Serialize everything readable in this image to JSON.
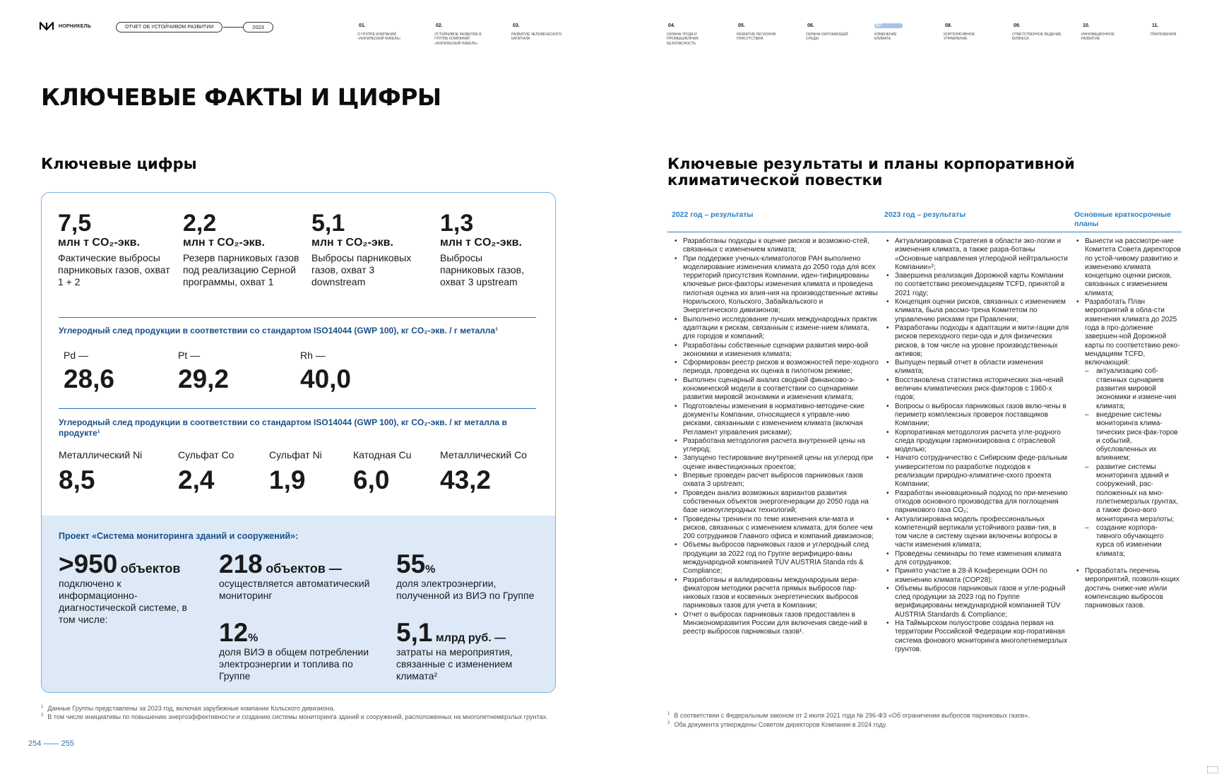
{
  "header": {
    "logo_text": "НОРНИКЕЛЬ",
    "report_label": "ОТЧЕТ ОБ УСТОЙЧИВОМ РАЗВИТИИ",
    "year": "2023",
    "nav": [
      {
        "num": "01.",
        "label": "О ГРУППЕ КОМПАНИЙ «НОРИЛЬСКИЙ НИКЕЛЬ»"
      },
      {
        "num": "02.",
        "label": "УСТОЙЧИВОЕ РАЗВИТИЕ В ГРУППЕ КОМПАНИЙ «НОРИЛЬСКИЙ НИКЕЛЬ»"
      },
      {
        "num": "03.",
        "label": "РАЗВИТИЕ ЧЕЛОВЕЧЕСКОГО КАПИТАЛА"
      },
      {
        "num": "04.",
        "label": "ОХРАНА ТРУДА И ПРОМЫШЛЕННАЯ БЕЗОПАСНОСТЬ"
      },
      {
        "num": "05.",
        "label": "РАЗВИТИЕ РЕГИОНОВ ПРИСУТСТВИЯ"
      },
      {
        "num": "06.",
        "label": "ОХРАНА ОКРУЖАЮЩЕЙ СРЕДЫ"
      },
      {
        "num": "07.",
        "label": "ИЗМЕНЕНИЕ КЛИМАТА",
        "active": true
      },
      {
        "num": "08.",
        "label": "КОРПОРАТИВНОЕ УПРАВЛЕНИЕ"
      },
      {
        "num": "09.",
        "label": "ОТВЕТСТВЕННОЕ ВЕДЕНИЕ БИЗНЕСА"
      },
      {
        "num": "10.",
        "label": "ИННОВАЦИОННОЕ РАЗВИТИЕ"
      },
      {
        "num": "11.",
        "label": "ПРИЛОЖЕНИЯ"
      }
    ]
  },
  "main_title": "КЛЮЧЕВЫЕ ФАКТЫ И ЦИФРЫ",
  "left": {
    "title": "Ключевые цифры",
    "key_figures": [
      {
        "value": "7,5",
        "unit": "млн т CO₂-экв.",
        "desc": "Фактические выбросы парниковых газов, охват 1 + 2"
      },
      {
        "value": "2,2",
        "unit": "млн т CO₂-экв.",
        "desc": "Резерв парниковых газов под реализацию Серной программы, охват 1"
      },
      {
        "value": "5,1",
        "unit": "млн т CO₂-экв.",
        "desc": "Выбросы парниковых газов, охват 3 downstream"
      },
      {
        "value": "1,3",
        "unit": "млн т CO₂-экв.",
        "desc": "Выбросы парниковых газов, охват 3 upstream"
      }
    ],
    "footprint_g": {
      "heading": "Углеродный след продукции в соответствии со стандартом ISO14044 (GWP 100), кг CO₂-экв. / г металла¹",
      "items": [
        {
          "name": "Pd —",
          "value": "28,6"
        },
        {
          "name": "Pt —",
          "value": "29,2"
        },
        {
          "name": "Rh —",
          "value": "40,0"
        }
      ]
    },
    "footprint_kg": {
      "heading": "Углеродный след продукции в соответствии со стандартом ISO14044 (GWP 100), кг CO₂-экв. / кг металла в продукте¹",
      "items": [
        {
          "name": "Металлический Ni",
          "value": "8,5"
        },
        {
          "name": "Сульфат Co",
          "value": "2,4"
        },
        {
          "name": "Сульфат Ni",
          "value": "1,9"
        },
        {
          "name": "Катодная Cu",
          "value": "6,0"
        },
        {
          "name": "Металлический Co",
          "value": "43,2"
        }
      ]
    },
    "monitoring": {
      "title": "Проект «Система мониторинга зданий и сооружений»:",
      "m1_value": ">950",
      "m1_unit": "объектов",
      "m1_desc": "подключено к информационно-диагностической системе, в том числе:",
      "m2_value": "218",
      "m2_unit": "объектов —",
      "m2_desc": "осуществляется автоматический мониторинг",
      "m3_value": "55",
      "m3_unit": "%",
      "m3_desc": "доля электроэнергии, полученной из ВИЭ по Группе",
      "m4_value": "12",
      "m4_unit": "%",
      "m4_desc": "доля ВИЭ в общем потреблении электроэнергии и топлива по Группе",
      "m5_value": "5,1",
      "m5_unit": "млрд руб. —",
      "m5_desc": "затраты на мероприятия, связанные с изменением климата²"
    },
    "footnotes": [
      {
        "num": "1",
        "text": "Данные Группы представлены за 2023 год, включая зарубежные компании Кольского дивизиона."
      },
      {
        "num": "2",
        "text": "В том числе инициативы по повышению энергоэффективности и созданию системы мониторинга зданий и сооружений, расположенных на многолетнемерзлых грунтах."
      }
    ],
    "pages": "254 —— 255"
  },
  "right": {
    "title": "Ключевые результаты и планы корпоративной климатической повестки",
    "col1_head": "2022 год – результаты",
    "col2_head": "2023 год – результаты",
    "col3_head": "Основные краткосрочные планы",
    "col1": [
      "Разработаны подходы к оценке рисков и возможно-стей, связанных с изменением климата;",
      "При поддержке ученых-климатологов РАН выполнено моделирование изменения климата до 2050 года для всех территорий присутствия Компании, иден-тифицированы ключевые риск-факторы изменения климата и проведена пилотная оценка их влия-ния на производственные активы Норильского, Кольского, Забайкальского и Энергетического дивизионов;",
      "Выполнено исследование лучших международных практик адаптации к рискам, связанным с измене-нием климата, для городов и компаний;",
      "Разработаны собственные сценарии развития миро-вой экономики и изменения климата;",
      "Сформирован реестр рисков и возможностей пере-ходного периода, проведена их оценка в пилотном режиме;",
      "Выполнен сценарный анализ сводной финансово-э-кономической модели в соответствии со сценариями развития мировой экономики и изменения климата;",
      "Подготовлены изменения в нормативно-методиче-ские документы Компании, относящиеся к управле-нию рисками, связанными с изменением климата (включая Регламент управления рисками);",
      "Разработана методология расчета внутренней цены на углерод;",
      "Запущено тестирование внутренней цены на углерод при оценке инвестиционных проектов;",
      "Впервые проведен расчет выбросов парниковых газов охвата 3 upstream;",
      "Проведен анализ возможных вариантов развития собственных объектов энергогенерации до 2050 года на базе низкоуглеродных технологий;",
      "Проведены тренинги по теме изменения кли-мата и рисков, связанных с изменением климата, для более чем 200 сотрудников Главного офиса и компаний дивизионов;",
      "Объемы выбросов парниковых газов и углеродный след продукции за 2022 год по Группе верифициро-ваны международной компанией TÜV AUSTRIA Standa rds & Compliance;",
      "Разработаны и валидированы международным вери-фикатором методики расчета прямых выбросов пар-никовых газов и косвенных энергетических выбросов парниковых газов для учета в Компании;",
      "Отчет о выбросах парниковых газов предоставлен в Минэкономразвития России для включения сведе-ний в реестр выбросов парниковых газов¹."
    ],
    "col2": [
      "Актуализирована Стратегия в области эко-логии и изменения климата, а также разра-ботаны «Основные направления углеродной нейтральности Компании»²;",
      "Завершена реализация Дорожной карты Компании по соответствию рекомендациям TCFD, принятой в 2021 году;",
      "Концепция оценки рисков, связанных с изменением климата, была рассмо-трена Комитетом по управлению рисками при Правлении;",
      "Разработаны подходы к адаптации и мити-гации для рисков переходного пери-ода и для физических рисков, в том числе на уровне производственных активов;",
      "Выпущен первый отчет в области изменения климата;",
      "Восстановлена статистика исторических зна-чений величин климатических риск-факторов с 1960-х годов;",
      "Вопросы о выбросах парниковых газов вклю-чены в периметр комплексных проверок поставщиков Компании;",
      "Корпоративная методология расчета угле-родного следа продукции гармонизирована с отраслевой моделью;",
      "Начато сотрудничество с Сибирским феде-ральным университетом по разработке подходов к реализации природно-климатиче-ского проекта Компании;",
      "Разработан инновационный подход по при-менению отходов основного производства для поглощения парникового газа CO₂;",
      "Актуализирована модель профессиональных компетенций вертикали устойчивого разви-тия, в том числе в систему оценки включены вопросы в части изменения климата;",
      "Проведены семинары по теме изменения климата для сотрудников;",
      "Принято участие в 28-й Конференции ООН по изменению климата (COP28);",
      "Объемы выбросов парниковых газов и угле-родный след продукции за 2023 год по Группе верифицированы международной компанией TÜV AUSTRIA Standards & Compliance;",
      "На Таймырском полуострове создана первая на территории Российской Федерации кор-поративная система фонового мониторинга многолетнемерзлых грунтов."
    ],
    "col3_intro": [
      "Вынести на рассмотре-ние Комитета Совета директоров по устой-чивому развитию и изменению климата концепцию оценки рисков, связанных с изменением климата;",
      "Разработать План мероприятий в обла-сти изменения климата до 2025 года в про-должение завершен-ной Дорожной карты по соответствию реко-мендациям TCFD, включающий:"
    ],
    "col3_sub": [
      "актуализацию соб-ственных сценариев развития мировой экономики и измене-ния климата;",
      "внедрение системы мониторинга клима-тических риск-фак-торов и событий, обусловленных их влиянием;",
      "развитие системы мониторинга зданий и сооружений, рас-положенных на мно-голетнемерзлых грунтах, а также фоно-вого мониторинга мерзлоты;",
      "создание корпора-тивного обучающего курса об изменении климата;"
    ],
    "col3_last": "Проработать перечень мероприятий, позволя-ющих достичь сниже-ние и/или компенсацию выбросов парниковых газов.",
    "footnotes": [
      {
        "num": "1",
        "text": "В соответствии с Федеральным законом от 2 июля 2021 года № 296-ФЗ «Об ограничении выбросов парниковых газов»."
      },
      {
        "num": "2",
        "text": "Оба документа утверждены Советом директоров Компании в 2024 году."
      }
    ]
  }
}
